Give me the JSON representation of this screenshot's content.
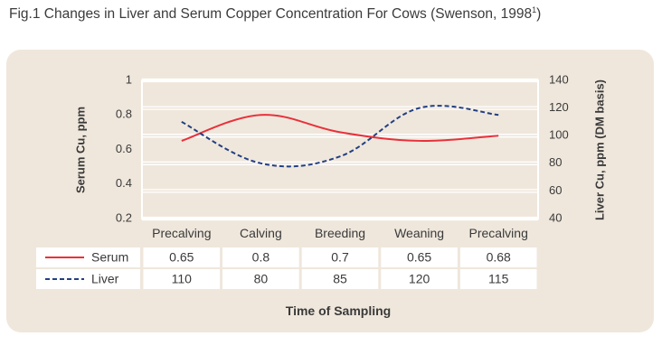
{
  "figure": {
    "title_main": "Fig.1 Changes in Liver and Serum Copper Concentration For Cows (Swenson, 1998",
    "title_sup": "1",
    "title_end": ")"
  },
  "chart_data": {
    "type": "line",
    "categories": [
      "Precalving",
      "Calving",
      "Breeding",
      "Weaning",
      "Precalving"
    ],
    "xlabel": "Time of Sampling",
    "ylabel": "Serum Cu, ppm",
    "y2label": "Liver Cu, ppm (DM basis)",
    "ylim": [
      0.2,
      1
    ],
    "y_ticks": [
      "0.2",
      "0.4",
      "0.6",
      "0.8",
      "1"
    ],
    "y2lim": [
      40,
      140
    ],
    "y2_ticks": [
      "40",
      "60",
      "80",
      "100",
      "120",
      "140"
    ],
    "grid": true,
    "series": [
      {
        "name": "Serum",
        "axis": "left",
        "values": [
          0.65,
          0.8,
          0.7,
          0.65,
          0.68
        ],
        "labels": [
          "0.65",
          "0.8",
          "0.7",
          "0.65",
          "0.68"
        ],
        "color": "#e8313a",
        "style": "solid"
      },
      {
        "name": "Liver",
        "axis": "right",
        "values": [
          110,
          80,
          85,
          120,
          115
        ],
        "labels": [
          "110",
          "80",
          "85",
          "120",
          "115"
        ],
        "color": "#233f82",
        "style": "dashed"
      }
    ]
  },
  "colors": {
    "panel": "#efe7dc",
    "grid": "#ffffff",
    "serum": "#e8313a",
    "liver": "#233f82"
  }
}
